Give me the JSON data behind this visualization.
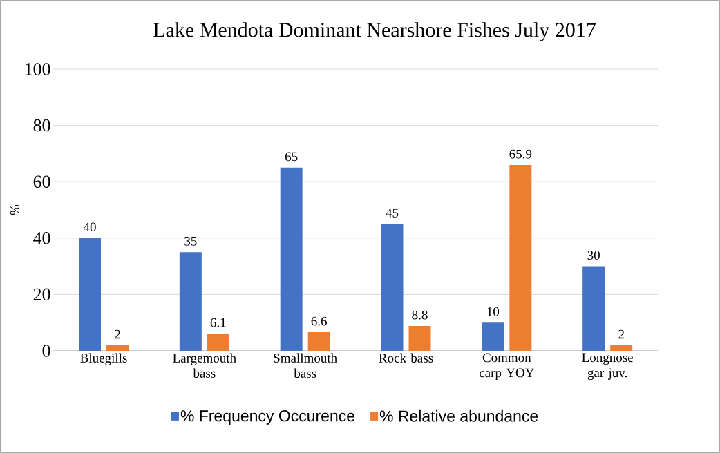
{
  "chart_data": {
    "type": "bar",
    "title": "Lake Mendota Dominant Nearshore Fishes July 2017",
    "ylabel": "%",
    "categories": [
      "Bluegills",
      "Largemouth bass",
      "Smallmouth bass",
      "Rock bass",
      "Common carp YOY",
      "Longnose gar juv."
    ],
    "series": [
      {
        "name": "% Frequency Occurence",
        "color": "#4472c4",
        "values": [
          40,
          35,
          65,
          45,
          10,
          30
        ]
      },
      {
        "name": "% Relative abundance",
        "color": "#ed7d31",
        "values": [
          2,
          6.1,
          6.6,
          8.8,
          65.9,
          2
        ]
      }
    ],
    "ylim": [
      0,
      100
    ],
    "yticks": [
      0,
      20,
      40,
      60,
      80,
      100
    ],
    "grid": "y",
    "legend": "bottom",
    "data_labels": true
  }
}
